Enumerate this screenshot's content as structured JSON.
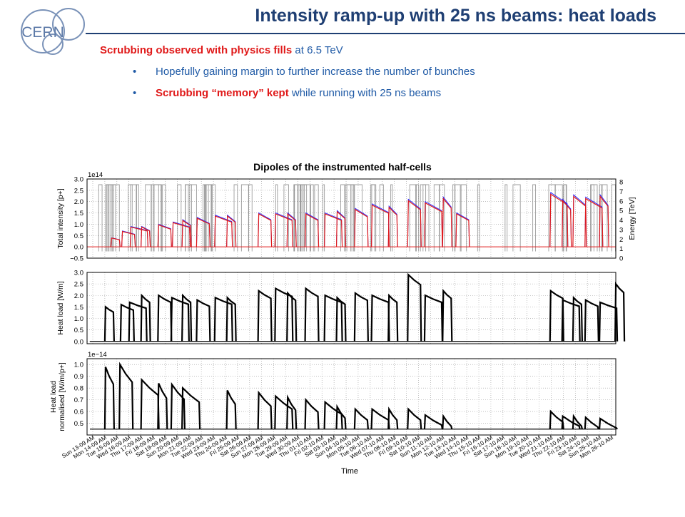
{
  "header": {
    "logo_text": "CERN",
    "title": "Intensity ramp-up with 25 ns beams: heat loads"
  },
  "intro": {
    "lead_red": "Scrubbing observed with physics fills",
    "lead_rest": " at 6.5 TeV",
    "bullet1": "Hopefully gaining margin to further increase the number of bunches",
    "bullet2_red": "Scrubbing “memory” kept",
    "bullet2_rest": " while running with 25 ns beams"
  },
  "colors": {
    "title": "#1f3f73",
    "text_blue": "#1f5aa6",
    "highlight_red": "#e01a1a",
    "beam1": "#e01a1a",
    "beam2": "#2a2aff",
    "energy": "#8c8c8c",
    "heatload": "#000000"
  },
  "chart_data": {
    "type": "line",
    "title": "Dipoles of the instrumented half-cells",
    "xlabel": "Time",
    "x_ticks": [
      "Sun 13-09 AM",
      "Mon 14-09 AM",
      "Tue 15-09 AM",
      "Wed 16-09 AM",
      "Thu 17-09 AM",
      "Fri 18-09 AM",
      "Sat 19-09 AM",
      "Sun 20-09 AM",
      "Mon 21-09 AM",
      "Tue 22-09 AM",
      "Wed 23-09 AM",
      "Thu 24-09 AM",
      "Fri 25-09 AM",
      "Sat 26-09 AM",
      "Sun 27-09 AM",
      "Mon 28-09 AM",
      "Tue 29-09 AM",
      "Wed 30-09 AM",
      "Thu 01-10 AM",
      "Fri 02-10 AM",
      "Sat 03-10 AM",
      "Sun 04-10 AM",
      "Mon 05-10 AM",
      "Tue 06-10 AM",
      "Wed 07-10 AM",
      "Thu 08-10 AM",
      "Fri 09-10 AM",
      "Sat 10-10 AM",
      "Sun 11-10 AM",
      "Mon 12-10 AM",
      "Tue 13-10 AM",
      "Wed 14-10 AM",
      "Thu 15-10 AM",
      "Fri 16-10 AM",
      "Sat 17-10 AM",
      "Sun 18-10 AM",
      "Mon 19-10 AM",
      "Tue 20-10 AM",
      "Wed 21-10 AM",
      "Thu 22-10 AM",
      "Fri 23-10 AM",
      "Sat 24-10 AM",
      "Sun 25-10 AM",
      "Mon 26-10 AM"
    ],
    "panels": [
      {
        "ylabel": "Total intensity [p+]",
        "y_multiplier": "1e14",
        "y_ticks": [
          "3.0",
          "2.5",
          "2.0",
          "1.5",
          "1.0",
          "0.5",
          "0.0",
          "−0.5"
        ],
        "ylim": [
          -0.5,
          3.0
        ],
        "y2label": "Energy [TeV]",
        "y2_ticks": [
          "8",
          "7",
          "6",
          "5",
          "4",
          "3",
          "2",
          "1",
          "0"
        ],
        "y2lim": [
          0,
          8
        ],
        "series": [],
        "fills": [
          {
            "start": 1.5,
            "peak": 0.4
          },
          {
            "start": 2.4,
            "peak": 0.7
          },
          {
            "start": 3.1,
            "peak": 0.9
          },
          {
            "start": 4.0,
            "peak": 0.9
          },
          {
            "start": 5.4,
            "peak": 1.0
          },
          {
            "start": 6.6,
            "peak": 1.1
          },
          {
            "start": 7.4,
            "peak": 1.2
          },
          {
            "start": 8.6,
            "peak": 1.3
          },
          {
            "start": 10.1,
            "peak": 1.4
          },
          {
            "start": 11.1,
            "peak": 1.4
          },
          {
            "start": 13.7,
            "peak": 1.5
          },
          {
            "start": 15.1,
            "peak": 1.5
          },
          {
            "start": 16.1,
            "peak": 1.5
          },
          {
            "start": 17.6,
            "peak": 1.5
          },
          {
            "start": 19.2,
            "peak": 1.5
          },
          {
            "start": 20.2,
            "peak": 1.6
          },
          {
            "start": 21.7,
            "peak": 1.7
          },
          {
            "start": 23.1,
            "peak": 1.9
          },
          {
            "start": 24.5,
            "peak": 1.8
          },
          {
            "start": 26.1,
            "peak": 2.1
          },
          {
            "start": 27.5,
            "peak": 2.0
          },
          {
            "start": 29.0,
            "peak": 2.2
          },
          {
            "start": 30.1,
            "peak": 1.5
          },
          {
            "start": 37.9,
            "peak": 2.4
          },
          {
            "start": 38.9,
            "peak": 2.1
          },
          {
            "start": 39.8,
            "peak": 2.3
          },
          {
            "start": 40.8,
            "peak": 2.2
          },
          {
            "start": 42.0,
            "peak": 2.3
          }
        ]
      },
      {
        "ylabel": "Heat load [W/m]",
        "y_ticks": [
          "3.0",
          "2.5",
          "2.0",
          "1.5",
          "1.0",
          "0.5",
          "0.0"
        ],
        "ylim": [
          -0.1,
          3.0
        ],
        "series": [],
        "fills": [
          {
            "start": 1.0,
            "peak": 1.5
          },
          {
            "start": 2.3,
            "peak": 1.6
          },
          {
            "start": 3.0,
            "peak": 1.7
          },
          {
            "start": 4.0,
            "peak": 2.0
          },
          {
            "start": 5.4,
            "peak": 2.0
          },
          {
            "start": 6.5,
            "peak": 1.9
          },
          {
            "start": 7.4,
            "peak": 2.0
          },
          {
            "start": 8.6,
            "peak": 1.8
          },
          {
            "start": 10.1,
            "peak": 1.9
          },
          {
            "start": 11.1,
            "peak": 1.9
          },
          {
            "start": 13.7,
            "peak": 2.2
          },
          {
            "start": 15.1,
            "peak": 2.3
          },
          {
            "start": 16.1,
            "peak": 2.1
          },
          {
            "start": 17.6,
            "peak": 2.3
          },
          {
            "start": 19.2,
            "peak": 2.0
          },
          {
            "start": 20.2,
            "peak": 1.9
          },
          {
            "start": 21.7,
            "peak": 2.1
          },
          {
            "start": 23.1,
            "peak": 2.0
          },
          {
            "start": 24.5,
            "peak": 2.0
          },
          {
            "start": 26.1,
            "peak": 2.9
          },
          {
            "start": 27.5,
            "peak": 2.0
          },
          {
            "start": 29.0,
            "peak": 2.2
          },
          {
            "start": 37.9,
            "peak": 2.2
          },
          {
            "start": 38.9,
            "peak": 1.8
          },
          {
            "start": 39.8,
            "peak": 1.9
          },
          {
            "start": 40.8,
            "peak": 1.8
          },
          {
            "start": 42.0,
            "peak": 1.7
          },
          {
            "start": 43.3,
            "peak": 2.5
          }
        ]
      },
      {
        "ylabel": "Heat load normalised [W/m/p+]",
        "y_multiplier": "1e−14",
        "y_ticks": [
          "1.0",
          "0.9",
          "0.8",
          "0.7",
          "0.6",
          "0.5"
        ],
        "ylim": [
          0.4,
          1.05
        ],
        "series": [],
        "fills": [
          {
            "start": 1.0,
            "peak": 0.98
          },
          {
            "start": 2.2,
            "peak": 1.0
          },
          {
            "start": 4.0,
            "peak": 0.87
          },
          {
            "start": 5.4,
            "peak": 0.84
          },
          {
            "start": 6.5,
            "peak": 0.83
          },
          {
            "start": 7.4,
            "peak": 0.8
          },
          {
            "start": 11.1,
            "peak": 0.78
          },
          {
            "start": 13.7,
            "peak": 0.76
          },
          {
            "start": 15.1,
            "peak": 0.73
          },
          {
            "start": 16.1,
            "peak": 0.72
          },
          {
            "start": 17.6,
            "peak": 0.7
          },
          {
            "start": 19.2,
            "peak": 0.68
          },
          {
            "start": 20.2,
            "peak": 0.64
          },
          {
            "start": 21.7,
            "peak": 0.62
          },
          {
            "start": 23.1,
            "peak": 0.62
          },
          {
            "start": 24.5,
            "peak": 0.62
          },
          {
            "start": 26.1,
            "peak": 0.62
          },
          {
            "start": 27.5,
            "peak": 0.57
          },
          {
            "start": 29.0,
            "peak": 0.56
          },
          {
            "start": 37.9,
            "peak": 0.6
          },
          {
            "start": 38.9,
            "peak": 0.56
          },
          {
            "start": 39.8,
            "peak": 0.56
          },
          {
            "start": 40.8,
            "peak": 0.55
          },
          {
            "start": 42.0,
            "peak": 0.54
          }
        ]
      }
    ]
  }
}
